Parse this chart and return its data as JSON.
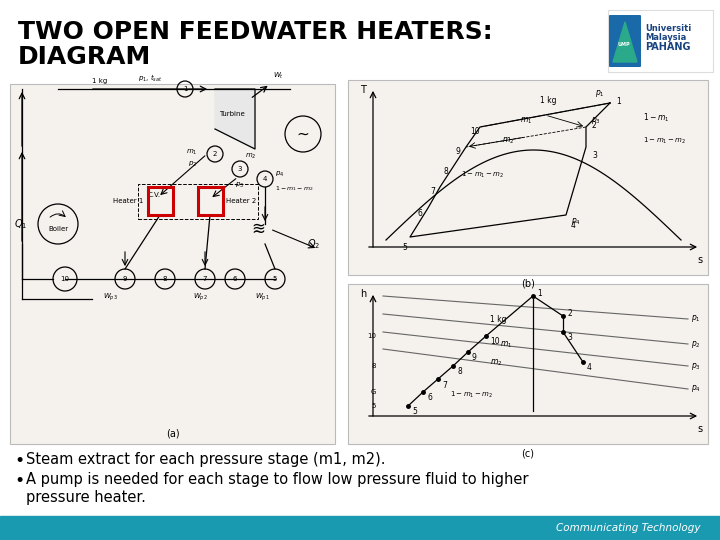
{
  "title_line1": "TWO OPEN FEEDWATER HEATERS:",
  "title_line2": "DIAGRAM",
  "bullet1": "Steam extract for each pressure stage (m1, m2).",
  "bullet2_part1": "A pump is needed for each stage to flow low pressure fluid to higher",
  "bullet2_part2": "pressure heater.",
  "bg_color": "#ffffff",
  "title_color": "#000000",
  "title_fontsize": 18,
  "bullet_fontsize": 10.5,
  "diagram_a_label": "(a)",
  "diagram_b_label": "(b)",
  "diagram_c_label": "(c)",
  "logo_text_line1": "Universiti",
  "logo_text_line2": "Malaysia",
  "logo_text_line3": "PAHANG",
  "footer_color": "#1a9ab0",
  "footer_text": "Communicating Technology",
  "red_accent": "#cc0000",
  "diagram_bg": "#f5f2ee",
  "diagram_border": "#bbbbbb"
}
